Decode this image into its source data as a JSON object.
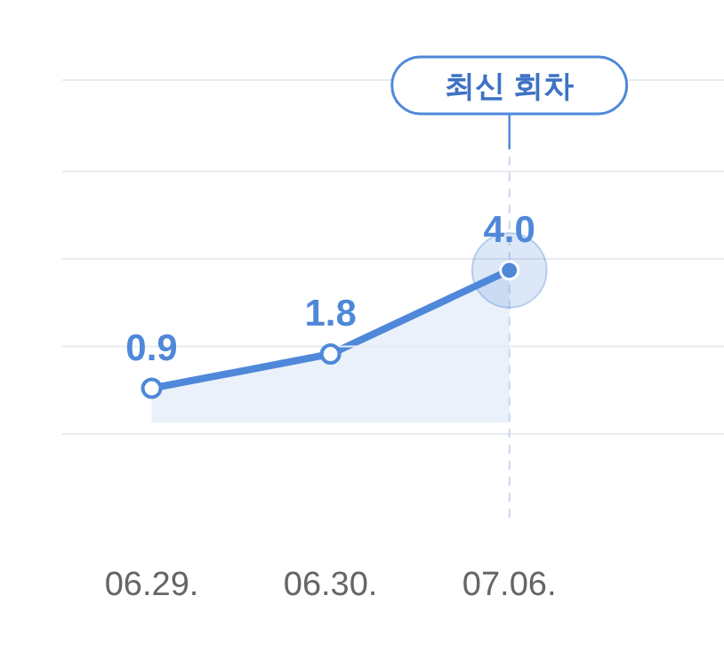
{
  "chart_data": {
    "type": "area",
    "categories": [
      "06.29.",
      "06.30.",
      "07.06."
    ],
    "series": [
      {
        "color": "#4f88d9",
        "values": [
          0.9,
          1.8,
          4.0
        ],
        "value_labels": [
          "0.9",
          "1.8",
          "4.0"
        ]
      }
    ],
    "ylim": [
      -2.5,
      9
    ],
    "yticks": [
      {
        "value": -0.3,
        "label": null
      },
      {
        "value": 2.0,
        "label": null
      },
      {
        "value": 4.3,
        "label": null
      },
      {
        "value": 6.6,
        "label": null
      },
      {
        "value": 9,
        "label": null
      }
    ],
    "tick_labels": "x",
    "grid": "y",
    "marker": "circle",
    "ref_lines": [
      {
        "axis": "x",
        "value": "07.06.",
        "line_style": "dashed",
        "color": "#c9d8f0"
      }
    ],
    "annotations": [
      "최신 회차"
    ]
  }
}
